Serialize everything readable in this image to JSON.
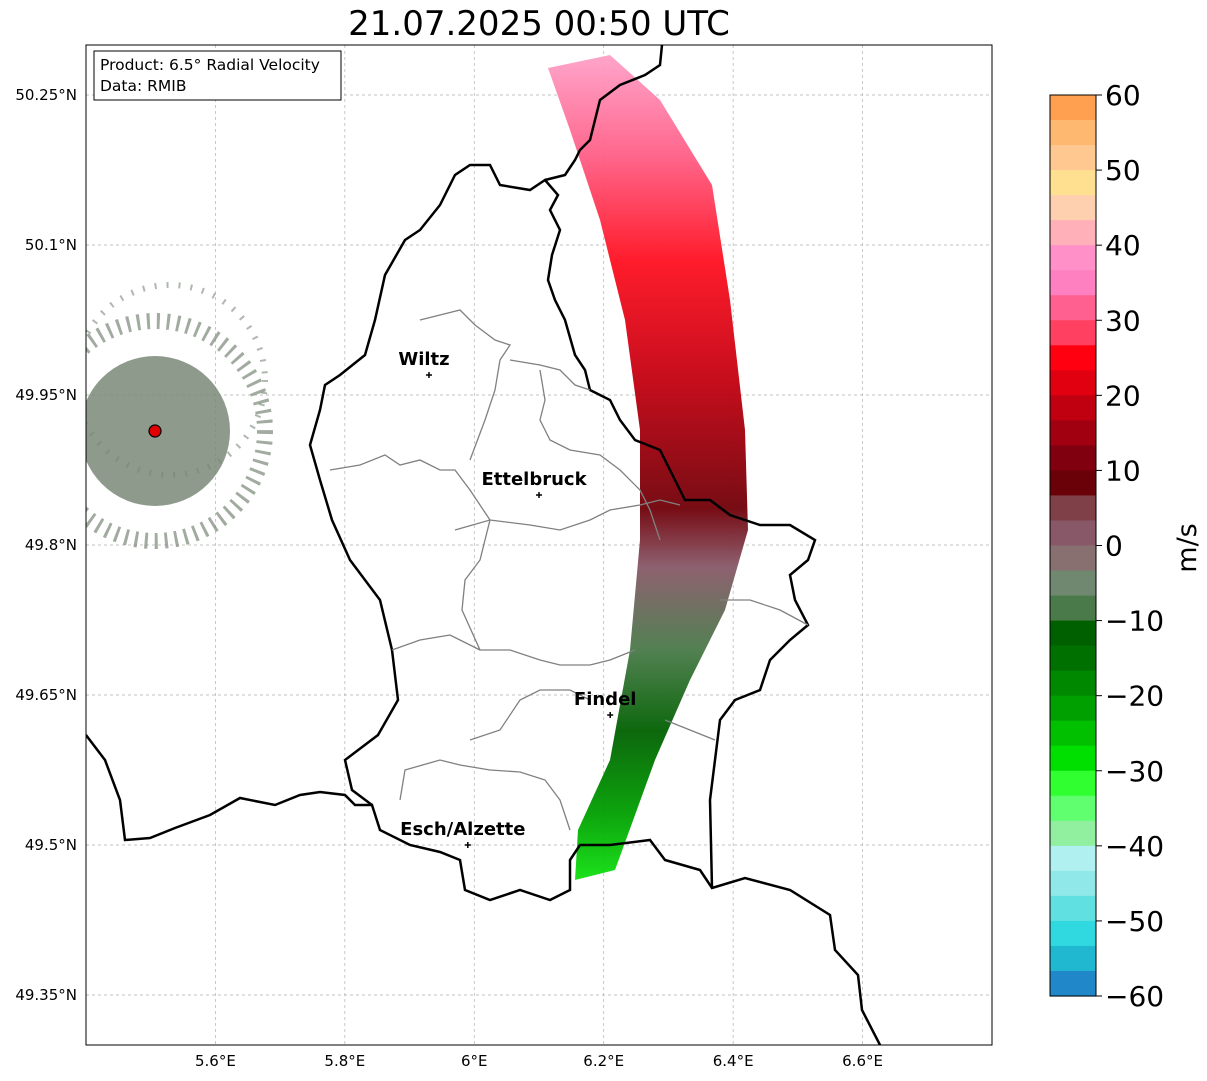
{
  "title": "21.07.2025 00:50 UTC",
  "info": {
    "product": "Product: 6.5° Radial Velocity",
    "data": "Data: RMIB"
  },
  "map": {
    "lat_ticks": [
      "50.25°N",
      "50.1°N",
      "49.95°N",
      "49.8°N",
      "49.65°N",
      "49.5°N",
      "49.35°N"
    ],
    "lon_ticks": [
      "5.6°E",
      "5.8°E",
      "6°E",
      "6.2°E",
      "6.4°E",
      "6.6°E"
    ],
    "lat_range": [
      49.3,
      50.3
    ],
    "lon_range": [
      5.4,
      6.8
    ],
    "cities": [
      {
        "name": "Wiltz",
        "lon": 5.93,
        "lat": 49.97
      },
      {
        "name": "Ettelbruck",
        "lon": 6.1,
        "lat": 49.85
      },
      {
        "name": "Findel",
        "lon": 6.21,
        "lat": 49.63
      },
      {
        "name": "Esch/Alzette",
        "lon": 5.99,
        "lat": 49.5
      }
    ],
    "radar_site": {
      "lon": 5.51,
      "lat": 49.915
    }
  },
  "colorbar": {
    "label": "m/s",
    "ticks": [
      "60",
      "50",
      "40",
      "30",
      "20",
      "10",
      "0",
      "−10",
      "−20",
      "−30",
      "−40",
      "−50",
      "−60"
    ],
    "range": [
      -60,
      60
    ],
    "colors": [
      "#ffa050",
      "#ffb870",
      "#ffc890",
      "#ffe090",
      "#ffd0b0",
      "#ffb0b8",
      "#ff90c8",
      "#ff80c0",
      "#ff6090",
      "#ff4060",
      "#ff0010",
      "#e00010",
      "#c00010",
      "#a00010",
      "#800010",
      "#6a0008",
      "#804048",
      "#885868",
      "#887070",
      "#708870",
      "#4a7a4a",
      "#006000",
      "#007000",
      "#008800",
      "#00a000",
      "#00c000",
      "#00e000",
      "#30ff30",
      "#60ff70",
      "#90f0a0",
      "#b0f0f0",
      "#90e8e8",
      "#60e0e0",
      "#30d8e0",
      "#20b8d0",
      "#2088c8"
    ]
  }
}
